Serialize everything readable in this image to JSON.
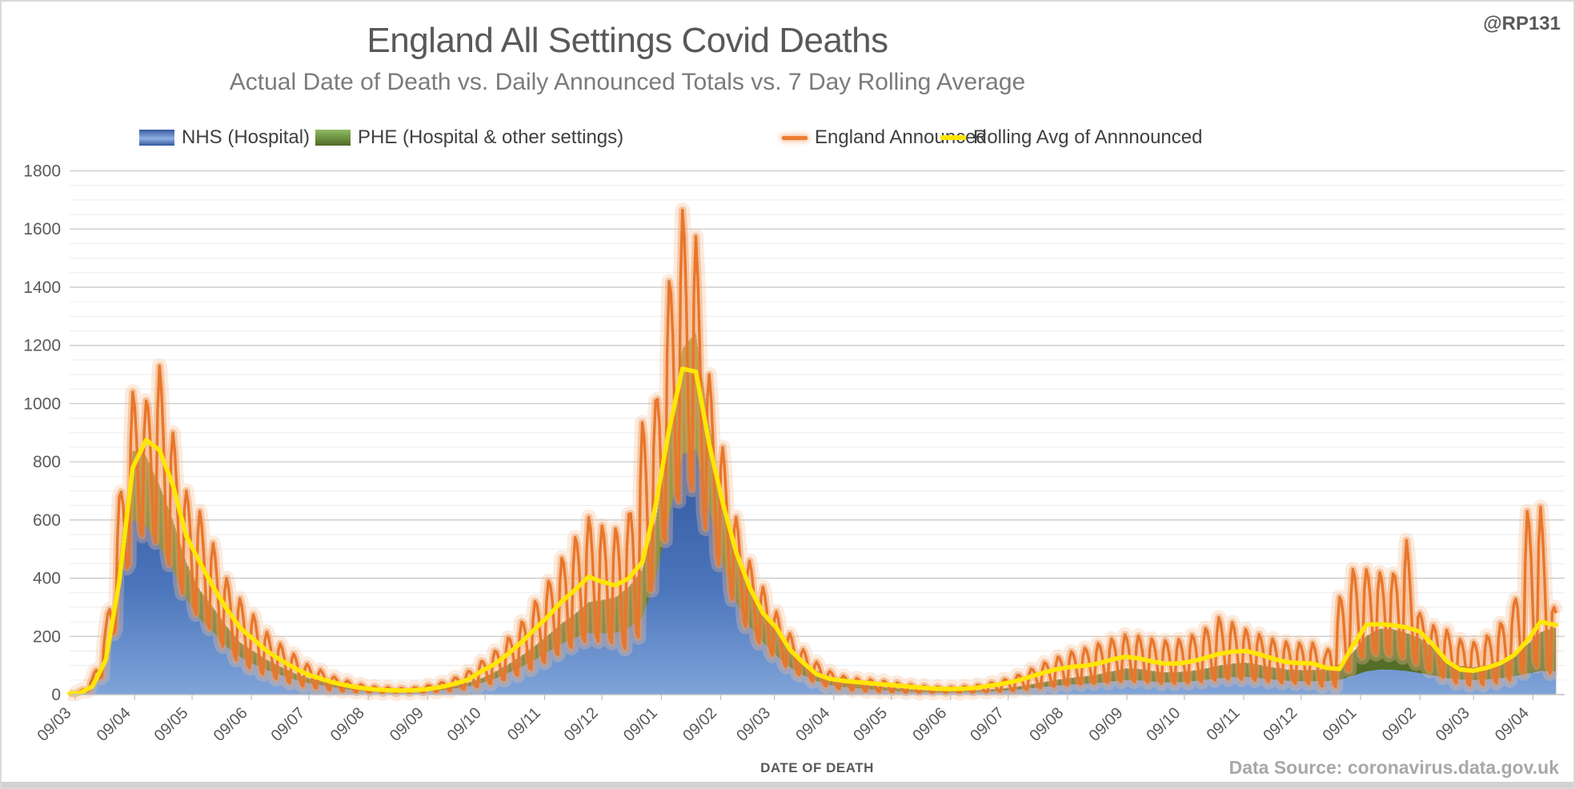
{
  "header": {
    "title": "England All Settings Covid Deaths",
    "subtitle": "Actual Date of Death vs. Daily Announced Totals vs. 7 Day Rolling Average",
    "watermark": "@RP131"
  },
  "footer": {
    "source": "Data Source: coronavirus.data.gov.uk"
  },
  "chart_data": {
    "type": "area+line",
    "title": "England All Settings Covid Deaths",
    "subtitle": "Actual Date of Death vs. Daily Announced Totals vs. 7 Day Rolling Average",
    "xlabel": "DATE OF DEATH",
    "ylabel": "",
    "y_axis": {
      "min": 0,
      "max": 1800,
      "major_step": 200,
      "minor_step": 50,
      "grid": true
    },
    "x_axis": {
      "tick_day_of_month": 9,
      "ticks": [
        {
          "date": "2020-03-09",
          "label": "09/03"
        },
        {
          "date": "2020-04-09",
          "label": "09/04"
        },
        {
          "date": "2020-05-09",
          "label": "09/05"
        },
        {
          "date": "2020-06-09",
          "label": "09/06"
        },
        {
          "date": "2020-07-09",
          "label": "09/07"
        },
        {
          "date": "2020-08-09",
          "label": "09/08"
        },
        {
          "date": "2020-09-09",
          "label": "09/09"
        },
        {
          "date": "2020-10-09",
          "label": "09/10"
        },
        {
          "date": "2020-11-09",
          "label": "09/11"
        },
        {
          "date": "2020-12-09",
          "label": "09/12"
        },
        {
          "date": "2021-01-09",
          "label": "09/01"
        },
        {
          "date": "2021-02-09",
          "label": "09/02"
        },
        {
          "date": "2021-03-09",
          "label": "09/03"
        },
        {
          "date": "2021-04-09",
          "label": "09/04"
        },
        {
          "date": "2021-05-09",
          "label": "09/05"
        },
        {
          "date": "2021-06-09",
          "label": "09/06"
        },
        {
          "date": "2021-07-09",
          "label": "09/07"
        },
        {
          "date": "2021-08-09",
          "label": "09/08"
        },
        {
          "date": "2021-09-09",
          "label": "09/09"
        },
        {
          "date": "2021-10-09",
          "label": "09/10"
        },
        {
          "date": "2021-11-09",
          "label": "09/11"
        },
        {
          "date": "2021-12-09",
          "label": "09/12"
        },
        {
          "date": "2022-01-09",
          "label": "09/01"
        },
        {
          "date": "2022-02-09",
          "label": "09/02"
        },
        {
          "date": "2022-03-09",
          "label": "09/03"
        },
        {
          "date": "2022-04-09",
          "label": "09/04"
        }
      ],
      "range": [
        "2020-03-06",
        "2022-04-21"
      ]
    },
    "legend": [
      {
        "id": "nhs",
        "label": "NHS (Hospital)",
        "type": "area",
        "color": "#4472c4",
        "gradient_top": "#33589e",
        "gradient_bottom": "#7fa4d9"
      },
      {
        "id": "phe",
        "label": "PHE (Hospital & other settings)",
        "type": "area",
        "color": "#70ad47",
        "gradient_top": "#8a962e",
        "gradient_bottom": "#4f6a26"
      },
      {
        "id": "announced",
        "label": "England Announced",
        "type": "line",
        "color": "#ed7d31",
        "glow": "#f6c299"
      },
      {
        "id": "avg",
        "label": "Rolling Avg of Annnounced",
        "type": "line",
        "color": "#ffe600"
      }
    ],
    "series_anchors": {
      "columns": [
        "date",
        "nhs_hospital",
        "phe_all_settings",
        "announced_weekly_high",
        "announced_weekly_low",
        "rolling_avg"
      ],
      "rows": [
        [
          "2020-03-11",
          4,
          5,
          8,
          2,
          4
        ],
        [
          "2020-03-18",
          25,
          32,
          55,
          15,
          28
        ],
        [
          "2020-03-25",
          110,
          130,
          230,
          70,
          120
        ],
        [
          "2020-04-01",
          360,
          470,
          680,
          260,
          390
        ],
        [
          "2020-04-08",
          600,
          840,
          1040,
          480,
          780
        ],
        [
          "2020-04-15",
          580,
          820,
          1010,
          530,
          875
        ],
        [
          "2020-04-22",
          510,
          720,
          1130,
          470,
          840
        ],
        [
          "2020-04-29",
          430,
          600,
          900,
          390,
          720
        ],
        [
          "2020-05-06",
          330,
          455,
          700,
          295,
          545
        ],
        [
          "2020-05-13",
          260,
          360,
          630,
          235,
          455
        ],
        [
          "2020-05-20",
          215,
          300,
          520,
          195,
          370
        ],
        [
          "2020-05-27",
          165,
          235,
          400,
          130,
          295
        ],
        [
          "2020-06-03",
          130,
          180,
          330,
          95,
          230
        ],
        [
          "2020-06-10",
          105,
          150,
          275,
          72,
          190
        ],
        [
          "2020-06-17",
          85,
          120,
          215,
          55,
          150
        ],
        [
          "2020-06-24",
          68,
          97,
          175,
          42,
          120
        ],
        [
          "2020-07-01",
          53,
          75,
          140,
          30,
          93
        ],
        [
          "2020-07-08",
          41,
          58,
          105,
          22,
          70
        ],
        [
          "2020-07-15",
          33,
          47,
          85,
          16,
          55
        ],
        [
          "2020-07-22",
          25,
          35,
          62,
          11,
          41
        ],
        [
          "2020-07-29",
          18,
          26,
          48,
          8,
          31
        ],
        [
          "2020-08-05",
          13,
          19,
          35,
          5,
          23
        ],
        [
          "2020-08-12",
          10,
          15,
          28,
          4,
          18
        ],
        [
          "2020-08-19",
          9,
          13,
          25,
          3,
          15
        ],
        [
          "2020-08-26",
          8,
          11,
          22,
          3,
          14
        ],
        [
          "2020-09-02",
          9,
          12,
          24,
          4,
          15
        ],
        [
          "2020-09-09",
          12,
          16,
          32,
          6,
          19
        ],
        [
          "2020-09-16",
          15,
          21,
          42,
          8,
          26
        ],
        [
          "2020-09-23",
          21,
          29,
          58,
          12,
          37
        ],
        [
          "2020-09-30",
          28,
          41,
          80,
          17,
          51
        ],
        [
          "2020-10-07",
          40,
          56,
          115,
          24,
          80
        ],
        [
          "2020-10-14",
          54,
          78,
          150,
          33,
          105
        ],
        [
          "2020-10-21",
          74,
          104,
          195,
          45,
          140
        ],
        [
          "2020-10-28",
          96,
          134,
          250,
          60,
          180
        ],
        [
          "2020-11-04",
          120,
          168,
          320,
          78,
          225
        ],
        [
          "2020-11-11",
          148,
          206,
          390,
          100,
          270
        ],
        [
          "2020-11-18",
          175,
          245,
          470,
          124,
          320
        ],
        [
          "2020-11-25",
          195,
          278,
          540,
          144,
          360
        ],
        [
          "2020-12-02",
          212,
          318,
          610,
          160,
          405
        ],
        [
          "2020-12-09",
          210,
          325,
          580,
          156,
          388
        ],
        [
          "2020-12-16",
          212,
          335,
          570,
          152,
          375
        ],
        [
          "2020-12-23",
          230,
          370,
          620,
          120,
          400
        ],
        [
          "2020-12-30",
          265,
          430,
          935,
          170,
          455
        ],
        [
          "2021-01-06",
          400,
          600,
          1010,
          380,
          650
        ],
        [
          "2021-01-13",
          610,
          880,
          1420,
          520,
          910
        ],
        [
          "2021-01-20",
          825,
          1190,
          1665,
          640,
          1120
        ],
        [
          "2021-01-27",
          845,
          1245,
          1575,
          650,
          1110
        ],
        [
          "2021-02-03",
          640,
          930,
          1100,
          480,
          860
        ],
        [
          "2021-02-10",
          450,
          670,
          850,
          390,
          660
        ],
        [
          "2021-02-17",
          320,
          480,
          610,
          270,
          490
        ],
        [
          "2021-02-24",
          235,
          360,
          460,
          195,
          370
        ],
        [
          "2021-03-03",
          180,
          290,
          370,
          150,
          280
        ],
        [
          "2021-03-10",
          135,
          225,
          285,
          112,
          230
        ],
        [
          "2021-03-17",
          95,
          160,
          210,
          78,
          155
        ],
        [
          "2021-03-24",
          67,
          114,
          155,
          54,
          110
        ],
        [
          "2021-03-31",
          47,
          82,
          112,
          35,
          70
        ],
        [
          "2021-04-07",
          33,
          59,
          80,
          21,
          54
        ],
        [
          "2021-04-14",
          26,
          46,
          64,
          15,
          47
        ],
        [
          "2021-04-21",
          22,
          38,
          56,
          11,
          43
        ],
        [
          "2021-04-28",
          18,
          31,
          52,
          8,
          39
        ],
        [
          "2021-05-05",
          15,
          26,
          47,
          7,
          35
        ],
        [
          "2021-05-12",
          12,
          22,
          41,
          6,
          31
        ],
        [
          "2021-05-19",
          10,
          18,
          35,
          5,
          27
        ],
        [
          "2021-05-26",
          9,
          15,
          30,
          4,
          23
        ],
        [
          "2021-06-02",
          8,
          13,
          27,
          4,
          20
        ],
        [
          "2021-06-09",
          8,
          13,
          26,
          4,
          19
        ],
        [
          "2021-06-16",
          9,
          14,
          28,
          5,
          20
        ],
        [
          "2021-06-23",
          10,
          15,
          33,
          6,
          24
        ],
        [
          "2021-06-30",
          11,
          18,
          41,
          7,
          31
        ],
        [
          "2021-07-07",
          14,
          22,
          52,
          9,
          38
        ],
        [
          "2021-07-14",
          17,
          28,
          67,
          11,
          48
        ],
        [
          "2021-07-21",
          22,
          36,
          88,
          15,
          62
        ],
        [
          "2021-07-28",
          27,
          44,
          110,
          19,
          76
        ],
        [
          "2021-08-04",
          31,
          52,
          130,
          23,
          88
        ],
        [
          "2021-08-11",
          35,
          58,
          148,
          26,
          95
        ],
        [
          "2021-08-18",
          37,
          63,
          160,
          28,
          99
        ],
        [
          "2021-08-25",
          40,
          70,
          176,
          30,
          107
        ],
        [
          "2021-09-01",
          45,
          80,
          192,
          32,
          120
        ],
        [
          "2021-09-08",
          50,
          90,
          206,
          35,
          130
        ],
        [
          "2021-09-15",
          49,
          89,
          202,
          34,
          125
        ],
        [
          "2021-09-22",
          45,
          82,
          192,
          31,
          114
        ],
        [
          "2021-09-29",
          42,
          77,
          186,
          28,
          106
        ],
        [
          "2021-10-06",
          43,
          78,
          190,
          29,
          107
        ],
        [
          "2021-10-13",
          46,
          82,
          204,
          30,
          114
        ],
        [
          "2021-10-20",
          51,
          90,
          228,
          33,
          126
        ],
        [
          "2021-10-27",
          56,
          100,
          265,
          37,
          140
        ],
        [
          "2021-11-03",
          60,
          107,
          248,
          40,
          147
        ],
        [
          "2021-11-10",
          61,
          110,
          225,
          40,
          150
        ],
        [
          "2021-11-17",
          57,
          103,
          208,
          37,
          139
        ],
        [
          "2021-11-24",
          52,
          94,
          192,
          33,
          124
        ],
        [
          "2021-12-01",
          48,
          87,
          182,
          30,
          112
        ],
        [
          "2021-12-08",
          46,
          85,
          178,
          29,
          108
        ],
        [
          "2021-12-15",
          46,
          85,
          178,
          29,
          107
        ],
        [
          "2021-12-22",
          46,
          87,
          140,
          18,
          92
        ],
        [
          "2021-12-29",
          51,
          105,
          335,
          8,
          88
        ],
        [
          "2022-01-05",
          64,
          145,
          430,
          85,
          168
        ],
        [
          "2022-01-12",
          80,
          202,
          430,
          120,
          240
        ],
        [
          "2022-01-19",
          86,
          227,
          420,
          123,
          242
        ],
        [
          "2022-01-26",
          85,
          225,
          415,
          118,
          238
        ],
        [
          "2022-02-02",
          81,
          212,
          530,
          100,
          231
        ],
        [
          "2022-02-09",
          74,
          194,
          280,
          88,
          216
        ],
        [
          "2022-02-16",
          66,
          160,
          238,
          65,
          170
        ],
        [
          "2022-02-23",
          57,
          120,
          222,
          40,
          115
        ],
        [
          "2022-03-02",
          52,
          99,
          190,
          25,
          86
        ],
        [
          "2022-03-09",
          50,
          94,
          180,
          22,
          82
        ],
        [
          "2022-03-16",
          52,
          101,
          202,
          25,
          92
        ],
        [
          "2022-03-23",
          57,
          117,
          245,
          30,
          108
        ],
        [
          "2022-03-30",
          63,
          139,
          308,
          36,
          135
        ],
        [
          "2022-04-06",
          72,
          172,
          630,
          47,
          185
        ],
        [
          "2022-04-13",
          81,
          215,
          645,
          70,
          250
        ],
        [
          "2022-04-20",
          80,
          230,
          300,
          45,
          240
        ]
      ]
    },
    "announced_weekday_pattern": [
      0.06,
      0.78,
      1.0,
      0.92,
      0.72,
      0.38,
      0.1
    ],
    "colors": {
      "grid_major": "#c9c9c9",
      "grid_minor": "#ececec",
      "axis": "#bfbfbf",
      "tick_text": "#595959",
      "announced": "#e8762b",
      "announced_glow_inner": "#f19a57",
      "announced_glow_outer": "#f6c299",
      "rolling_avg": "#ffe605",
      "phe_edge_dots": "#ffffff"
    }
  }
}
